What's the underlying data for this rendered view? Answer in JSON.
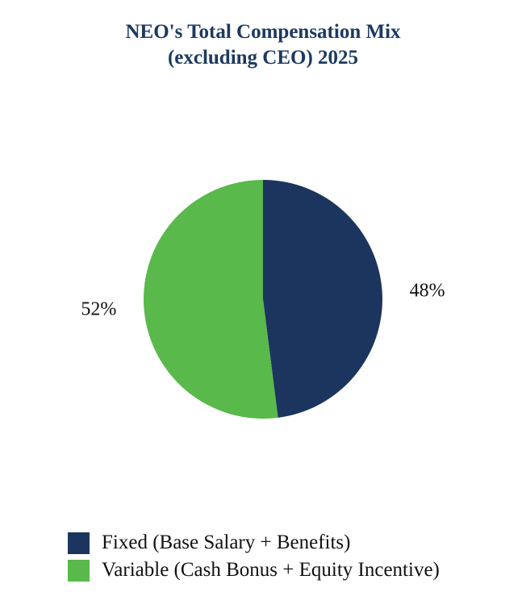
{
  "chart_data": {
    "type": "pie",
    "title_lines": [
      "NEO's Total Compensation Mix",
      "(excluding CEO) 2025"
    ],
    "slices": [
      {
        "name": "Fixed (Base Salary + Benefits)",
        "value": 48,
        "label": "48%",
        "color": "#1c355e"
      },
      {
        "name": "Variable (Cash Bonus + Equity Incentive)",
        "value": 52,
        "label": "52%",
        "color": "#59b94b"
      }
    ],
    "start_angle_deg": 0,
    "direction": "clockwise",
    "legend_position": "bottom-left"
  }
}
